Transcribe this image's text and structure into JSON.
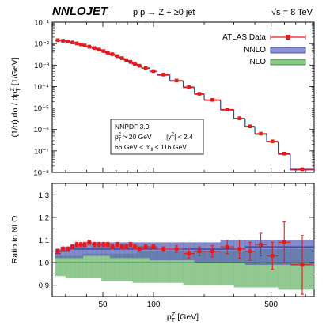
{
  "header": {
    "brand": "NNLOJET",
    "process": "p p → Z + ≥0 jet",
    "energy": "√s = 8 TeV"
  },
  "legend": {
    "items": [
      {
        "label": "ATLAS Data",
        "color": "#e41a1c"
      },
      {
        "label": "NNLO",
        "color": "#4a55b8"
      },
      {
        "label": "NLO",
        "color": "#3a9a3a"
      }
    ]
  },
  "cuts": {
    "line1": "NNPDF 3.0",
    "line2a": "p",
    "line2b": "T",
    "line2c": "Z",
    "line2d": " > 20 GeV",
    "line2e": "|y",
    "line2f": "Z",
    "line2g": "| < 2.4",
    "line3a": "66 GeV < m",
    "line3b": "ll",
    "line3c": " < 116 GeV"
  },
  "axes": {
    "top_ylabel": "(1/σ) dσ / dp",
    "top_ylabel_sub": "T",
    "top_ylabel_sup": "Z",
    "top_ylabel_unit": " [1/GeV]",
    "bottom_ylabel": "Ratio to NLO",
    "xlabel": "p",
    "xlabel_sub": "T",
    "xlabel_sup": "Z",
    "xlabel_unit": " [GeV]",
    "x_ticks": [
      "50",
      "100",
      "500"
    ],
    "top_y_ticks": [
      "10⁻⁸",
      "10⁻⁷",
      "10⁻⁶",
      "10⁻⁵",
      "10⁻⁴",
      "10⁻³",
      "10⁻²",
      "10⁻¹"
    ],
    "bottom_y_ticks": [
      "0.9",
      "1.0",
      "1.1",
      "1.2",
      "1.3"
    ]
  },
  "chart_data": [
    {
      "type": "line",
      "panel": "distribution",
      "x_scale": "log",
      "y_scale": "log",
      "xlim": [
        25,
        900
      ],
      "ylim": [
        1e-08,
        0.1
      ],
      "xlabel": "pTZ [GeV]",
      "ylabel": "(1/σ) dσ / dpTZ [1/GeV]",
      "grid": false,
      "legend_position": "top-right",
      "bin_edges": [
        26,
        28,
        30,
        32,
        34,
        36,
        38,
        40,
        43,
        46,
        49,
        52,
        55,
        59,
        63,
        67,
        71,
        75,
        80,
        85,
        95,
        105,
        125,
        150,
        175,
        200,
        250,
        300,
        350,
        400,
        470,
        550,
        650,
        900
      ],
      "series": [
        {
          "name": "ATLAS Data",
          "values": [
            0.0145,
            0.0136,
            0.0125,
            0.0113,
            0.0102,
            0.0091,
            0.0082,
            0.0072,
            0.0062,
            0.0053,
            0.0045,
            0.0038,
            0.0032,
            0.0026,
            0.0021,
            0.0017,
            0.0014,
            0.00115,
            0.00093,
            0.00074,
            0.00052,
            0.00036,
            0.00019,
            9.5e-05,
            4.6e-05,
            2.4e-05,
            8.5e-06,
            3.3e-06,
            1.4e-06,
            6.4e-07,
            2.8e-07,
            7.5e-08,
            1.4e-08
          ]
        },
        {
          "name": "NNLO",
          "values": [
            0.0144,
            0.0135,
            0.0124,
            0.0112,
            0.0101,
            0.009,
            0.0081,
            0.0071,
            0.0061,
            0.0052,
            0.0044,
            0.0037,
            0.0031,
            0.0025,
            0.0021,
            0.0017,
            0.0014,
            0.00114,
            0.00092,
            0.00073,
            0.00051,
            0.00035,
            0.000185,
            9.3e-05,
            4.5e-05,
            2.35e-05,
            8.3e-06,
            3.2e-06,
            1.38e-06,
            6.2e-07,
            2.7e-07,
            7.2e-08,
            1.35e-08
          ]
        },
        {
          "name": "NLO",
          "values": [
            0.0138,
            0.0129,
            0.0119,
            0.0107,
            0.0097,
            0.0086,
            0.0077,
            0.0068,
            0.0058,
            0.005,
            0.0042,
            0.0035,
            0.003,
            0.0024,
            0.002,
            0.0016,
            0.00133,
            0.00109,
            0.00088,
            0.0007,
            0.00049,
            0.00033,
            0.000176,
            8.8e-05,
            4.3e-05,
            2.24e-05,
            7.9e-06,
            3.1e-06,
            1.31e-06,
            5.9e-07,
            2.6e-07,
            6.9e-08,
            1.3e-08
          ]
        }
      ]
    },
    {
      "type": "line",
      "panel": "ratio",
      "x_scale": "log",
      "xlim": [
        25,
        900
      ],
      "ylim": [
        0.85,
        1.35
      ],
      "ylabel": "Ratio to NLO",
      "xlabel": "pTZ [GeV]",
      "bin_edges": [
        26,
        28,
        30,
        32,
        34,
        36,
        38,
        40,
        43,
        46,
        49,
        52,
        55,
        59,
        63,
        67,
        71,
        75,
        80,
        85,
        95,
        105,
        125,
        150,
        175,
        200,
        250,
        300,
        350,
        400,
        470,
        550,
        650,
        900
      ],
      "series": [
        {
          "name": "ATLAS Data",
          "values": [
            1.05,
            1.06,
            1.06,
            1.07,
            1.08,
            1.08,
            1.08,
            1.09,
            1.08,
            1.08,
            1.08,
            1.08,
            1.07,
            1.08,
            1.07,
            1.07,
            1.08,
            1.07,
            1.06,
            1.07,
            1.07,
            1.06,
            1.06,
            1.04,
            1.05,
            1.05,
            1.07,
            1.06,
            1.05,
            1.08,
            1.03,
            1.09,
            0.99
          ],
          "errors": [
            0.01,
            0.01,
            0.01,
            0.01,
            0.01,
            0.01,
            0.01,
            0.01,
            0.01,
            0.01,
            0.01,
            0.01,
            0.01,
            0.01,
            0.01,
            0.01,
            0.01,
            0.01,
            0.01,
            0.01,
            0.01,
            0.01,
            0.015,
            0.02,
            0.02,
            0.025,
            0.03,
            0.04,
            0.04,
            0.05,
            0.06,
            0.09,
            0.13
          ]
        },
        {
          "name": "NNLO",
          "values": [
            1.04,
            1.05,
            1.05,
            1.06,
            1.06,
            1.06,
            1.06,
            1.06,
            1.06,
            1.06,
            1.06,
            1.06,
            1.06,
            1.06,
            1.06,
            1.06,
            1.06,
            1.06,
            1.06,
            1.06,
            1.06,
            1.06,
            1.06,
            1.06,
            1.06,
            1.06,
            1.06,
            1.06,
            1.07,
            1.07,
            1.07,
            1.07,
            1.07
          ],
          "band_low": [
            1.02,
            1.02,
            1.02,
            1.02,
            1.02,
            1.02,
            1.03,
            1.03,
            1.03,
            1.03,
            1.03,
            1.03,
            1.02,
            1.02,
            1.02,
            1.02,
            1.02,
            1.02,
            1.02,
            1.02,
            1.01,
            1.01,
            1.01,
            1.01,
            1.0,
            1.0,
            1.0,
            1.0,
            0.99,
            0.99,
            0.99,
            0.99,
            0.99
          ],
          "band_high": [
            1.06,
            1.07,
            1.07,
            1.08,
            1.08,
            1.08,
            1.08,
            1.09,
            1.09,
            1.09,
            1.09,
            1.09,
            1.09,
            1.09,
            1.09,
            1.09,
            1.09,
            1.09,
            1.09,
            1.09,
            1.09,
            1.09,
            1.09,
            1.09,
            1.09,
            1.09,
            1.1,
            1.1,
            1.1,
            1.1,
            1.1,
            1.1,
            1.1
          ]
        },
        {
          "name": "NLO",
          "values": [
            1,
            1,
            1,
            1,
            1,
            1,
            1,
            1,
            1,
            1,
            1,
            1,
            1,
            1,
            1,
            1,
            1,
            1,
            1,
            1,
            1,
            1,
            1,
            1,
            1,
            1,
            1,
            1,
            1,
            1,
            1,
            1,
            1
          ],
          "band_low": [
            0.94,
            0.94,
            0.93,
            0.93,
            0.93,
            0.93,
            0.93,
            0.93,
            0.93,
            0.93,
            0.92,
            0.92,
            0.92,
            0.92,
            0.92,
            0.92,
            0.92,
            0.91,
            0.91,
            0.91,
            0.91,
            0.91,
            0.91,
            0.9,
            0.9,
            0.9,
            0.9,
            0.89,
            0.89,
            0.89,
            0.89,
            0.88,
            0.88
          ],
          "band_high": [
            1.03,
            1.03,
            1.03,
            1.03,
            1.03,
            1.03,
            1.04,
            1.04,
            1.04,
            1.04,
            1.04,
            1.04,
            1.04,
            1.04,
            1.04,
            1.04,
            1.04,
            1.04,
            1.05,
            1.05,
            1.05,
            1.05,
            1.05,
            1.05,
            1.05,
            1.05,
            1.05,
            1.05,
            1.05,
            1.06,
            1.06,
            1.06,
            1.06
          ]
        }
      ]
    }
  ]
}
